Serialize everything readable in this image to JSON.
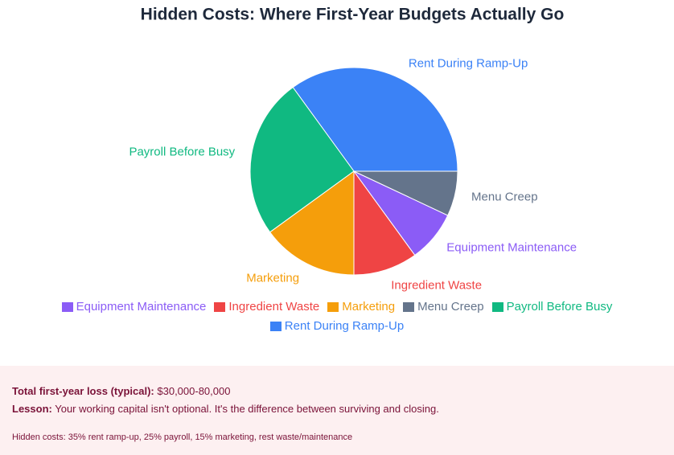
{
  "chart_data": {
    "type": "pie",
    "title": "Hidden Costs: Where First-Year Budgets Actually Go",
    "categories": [
      "Rent During Ramp-Up",
      "Payroll Before Busy",
      "Marketing",
      "Ingredient Waste",
      "Equipment Maintenance",
      "Menu Creep"
    ],
    "values": [
      35,
      25,
      15,
      10,
      8,
      7
    ],
    "colors": [
      "#3b82f6",
      "#10b981",
      "#f59e0b",
      "#ef4444",
      "#8b5cf6",
      "#64748b"
    ],
    "legend_order": "alphabetical"
  },
  "footer": {
    "total_label": "Total first-year loss (typical):",
    "total_value": "$30,000-80,000",
    "lesson_label": "Lesson:",
    "lesson_text": "Your working capital isn't optional. It's the difference between surviving and closing.",
    "note": "Hidden costs: 35% rent ramp-up, 25% payroll, 15% marketing, rest waste/maintenance"
  }
}
